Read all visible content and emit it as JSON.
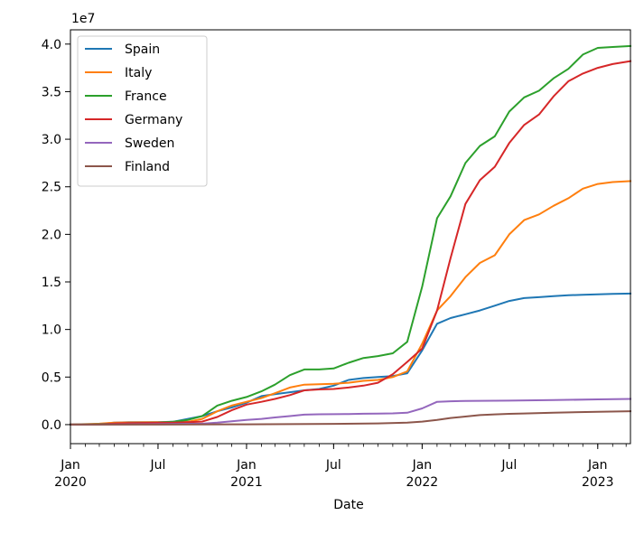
{
  "chart_data": {
    "type": "line",
    "title": "",
    "xlabel": "Date",
    "ylabel": "",
    "y_offset_label": "1e7",
    "xlim": [
      "2020-01-01",
      "2023-03-10"
    ],
    "ylim": [
      -2000000,
      41500000
    ],
    "legend_position": "upper-left",
    "grid": false,
    "x_ticks": [
      {
        "date": "2020-01-01",
        "line1": "Jan",
        "line2": "2020"
      },
      {
        "date": "2020-07-01",
        "line1": "Jul",
        "line2": ""
      },
      {
        "date": "2021-01-01",
        "line1": "Jan",
        "line2": "2021"
      },
      {
        "date": "2021-07-01",
        "line1": "Jul",
        "line2": ""
      },
      {
        "date": "2022-01-01",
        "line1": "Jan",
        "line2": "2022"
      },
      {
        "date": "2022-07-01",
        "line1": "Jul",
        "line2": ""
      },
      {
        "date": "2023-01-01",
        "line1": "Jan",
        "line2": "2023"
      }
    ],
    "y_ticks": [
      {
        "value": 0,
        "label": "0.0"
      },
      {
        "value": 5000000,
        "label": "0.5"
      },
      {
        "value": 10000000,
        "label": "1.0"
      },
      {
        "value": 15000000,
        "label": "1.5"
      },
      {
        "value": 20000000,
        "label": "2.0"
      },
      {
        "value": 25000000,
        "label": "2.5"
      },
      {
        "value": 30000000,
        "label": "3.0"
      },
      {
        "value": 35000000,
        "label": "3.5"
      },
      {
        "value": 40000000,
        "label": "4.0"
      }
    ],
    "series": [
      {
        "name": "Spain",
        "color": "#1f77b4",
        "points": [
          [
            "2020-01-01",
            0
          ],
          [
            "2020-03-01",
            50000
          ],
          [
            "2020-04-01",
            200000
          ],
          [
            "2020-05-01",
            250000
          ],
          [
            "2020-07-01",
            260000
          ],
          [
            "2020-08-01",
            300000
          ],
          [
            "2020-09-01",
            600000
          ],
          [
            "2020-10-01",
            900000
          ],
          [
            "2020-11-01",
            1400000
          ],
          [
            "2020-12-01",
            1800000
          ],
          [
            "2021-01-01",
            2300000
          ],
          [
            "2021-02-01",
            3000000
          ],
          [
            "2021-03-01",
            3200000
          ],
          [
            "2021-04-01",
            3400000
          ],
          [
            "2021-05-01",
            3600000
          ],
          [
            "2021-06-01",
            3750000
          ],
          [
            "2021-07-01",
            4100000
          ],
          [
            "2021-08-01",
            4700000
          ],
          [
            "2021-09-01",
            4900000
          ],
          [
            "2021-10-01",
            5000000
          ],
          [
            "2021-11-01",
            5100000
          ],
          [
            "2021-12-01",
            5400000
          ],
          [
            "2022-01-01",
            7800000
          ],
          [
            "2022-02-01",
            10600000
          ],
          [
            "2022-03-01",
            11200000
          ],
          [
            "2022-04-01",
            11600000
          ],
          [
            "2022-05-01",
            12000000
          ],
          [
            "2022-06-01",
            12500000
          ],
          [
            "2022-07-01",
            13000000
          ],
          [
            "2022-08-01",
            13300000
          ],
          [
            "2022-09-01",
            13400000
          ],
          [
            "2022-10-01",
            13500000
          ],
          [
            "2022-11-01",
            13600000
          ],
          [
            "2022-12-01",
            13650000
          ],
          [
            "2023-01-01",
            13700000
          ],
          [
            "2023-02-01",
            13740000
          ],
          [
            "2023-03-10",
            13780000
          ]
        ]
      },
      {
        "name": "Italy",
        "color": "#ff7f0e",
        "points": [
          [
            "2020-01-01",
            0
          ],
          [
            "2020-03-01",
            100000
          ],
          [
            "2020-04-01",
            200000
          ],
          [
            "2020-05-01",
            230000
          ],
          [
            "2020-07-01",
            250000
          ],
          [
            "2020-08-01",
            260000
          ],
          [
            "2020-09-01",
            300000
          ],
          [
            "2020-10-01",
            600000
          ],
          [
            "2020-11-01",
            1400000
          ],
          [
            "2020-12-01",
            2000000
          ],
          [
            "2021-01-01",
            2400000
          ],
          [
            "2021-02-01",
            2800000
          ],
          [
            "2021-03-01",
            3300000
          ],
          [
            "2021-04-01",
            3900000
          ],
          [
            "2021-05-01",
            4200000
          ],
          [
            "2021-06-01",
            4250000
          ],
          [
            "2021-07-01",
            4300000
          ],
          [
            "2021-08-01",
            4400000
          ],
          [
            "2021-09-01",
            4600000
          ],
          [
            "2021-10-01",
            4700000
          ],
          [
            "2021-11-01",
            5000000
          ],
          [
            "2021-12-01",
            5600000
          ],
          [
            "2022-01-01",
            8500000
          ],
          [
            "2022-02-01",
            12000000
          ],
          [
            "2022-03-01",
            13500000
          ],
          [
            "2022-04-01",
            15500000
          ],
          [
            "2022-05-01",
            17000000
          ],
          [
            "2022-06-01",
            17800000
          ],
          [
            "2022-07-01",
            20000000
          ],
          [
            "2022-08-01",
            21500000
          ],
          [
            "2022-09-01",
            22100000
          ],
          [
            "2022-10-01",
            23000000
          ],
          [
            "2022-11-01",
            23800000
          ],
          [
            "2022-12-01",
            24800000
          ],
          [
            "2023-01-01",
            25300000
          ],
          [
            "2023-02-01",
            25500000
          ],
          [
            "2023-03-10",
            25600000
          ]
        ]
      },
      {
        "name": "France",
        "color": "#2ca02c",
        "points": [
          [
            "2020-01-01",
            0
          ],
          [
            "2020-03-01",
            50000
          ],
          [
            "2020-04-01",
            100000
          ],
          [
            "2020-05-01",
            150000
          ],
          [
            "2020-07-01",
            200000
          ],
          [
            "2020-08-01",
            300000
          ],
          [
            "2020-09-01",
            500000
          ],
          [
            "2020-10-01",
            900000
          ],
          [
            "2020-11-01",
            2000000
          ],
          [
            "2020-12-01",
            2500000
          ],
          [
            "2021-01-01",
            2900000
          ],
          [
            "2021-02-01",
            3500000
          ],
          [
            "2021-03-01",
            4200000
          ],
          [
            "2021-04-01",
            5200000
          ],
          [
            "2021-05-01",
            5800000
          ],
          [
            "2021-06-01",
            5800000
          ],
          [
            "2021-07-01",
            5900000
          ],
          [
            "2021-08-01",
            6500000
          ],
          [
            "2021-09-01",
            7000000
          ],
          [
            "2021-10-01",
            7200000
          ],
          [
            "2021-11-01",
            7500000
          ],
          [
            "2021-12-01",
            8700000
          ],
          [
            "2022-01-01",
            14500000
          ],
          [
            "2022-02-01",
            21700000
          ],
          [
            "2022-03-01",
            24000000
          ],
          [
            "2022-04-01",
            27500000
          ],
          [
            "2022-05-01",
            29300000
          ],
          [
            "2022-06-01",
            30300000
          ],
          [
            "2022-07-01",
            32900000
          ],
          [
            "2022-08-01",
            34400000
          ],
          [
            "2022-09-01",
            35100000
          ],
          [
            "2022-10-01",
            36400000
          ],
          [
            "2022-11-01",
            37400000
          ],
          [
            "2022-12-01",
            38900000
          ],
          [
            "2023-01-01",
            39600000
          ],
          [
            "2023-02-01",
            39700000
          ],
          [
            "2023-03-10",
            39800000
          ]
        ]
      },
      {
        "name": "Germany",
        "color": "#d62728",
        "points": [
          [
            "2020-01-01",
            0
          ],
          [
            "2020-03-01",
            20000
          ],
          [
            "2020-04-01",
            120000
          ],
          [
            "2020-05-01",
            170000
          ],
          [
            "2020-07-01",
            190000
          ],
          [
            "2020-08-01",
            210000
          ],
          [
            "2020-09-01",
            250000
          ],
          [
            "2020-10-01",
            320000
          ],
          [
            "2020-11-01",
            800000
          ],
          [
            "2020-12-01",
            1500000
          ],
          [
            "2021-01-01",
            2100000
          ],
          [
            "2021-02-01",
            2400000
          ],
          [
            "2021-03-01",
            2700000
          ],
          [
            "2021-04-01",
            3100000
          ],
          [
            "2021-05-01",
            3600000
          ],
          [
            "2021-06-01",
            3700000
          ],
          [
            "2021-07-01",
            3750000
          ],
          [
            "2021-08-01",
            3900000
          ],
          [
            "2021-09-01",
            4100000
          ],
          [
            "2021-10-01",
            4400000
          ],
          [
            "2021-11-01",
            5300000
          ],
          [
            "2021-12-01",
            6600000
          ],
          [
            "2022-01-01",
            8000000
          ],
          [
            "2022-02-01",
            12000000
          ],
          [
            "2022-03-01",
            17500000
          ],
          [
            "2022-04-01",
            23200000
          ],
          [
            "2022-05-01",
            25700000
          ],
          [
            "2022-06-01",
            27100000
          ],
          [
            "2022-07-01",
            29600000
          ],
          [
            "2022-08-01",
            31500000
          ],
          [
            "2022-09-01",
            32600000
          ],
          [
            "2022-10-01",
            34500000
          ],
          [
            "2022-11-01",
            36100000
          ],
          [
            "2022-12-01",
            36900000
          ],
          [
            "2023-01-01",
            37500000
          ],
          [
            "2023-02-01",
            37900000
          ],
          [
            "2023-03-10",
            38200000
          ]
        ]
      },
      {
        "name": "Sweden",
        "color": "#9467bd",
        "points": [
          [
            "2020-01-01",
            0
          ],
          [
            "2020-04-01",
            10000
          ],
          [
            "2020-07-01",
            50000
          ],
          [
            "2020-10-01",
            100000
          ],
          [
            "2020-11-01",
            200000
          ],
          [
            "2020-12-01",
            350000
          ],
          [
            "2021-01-01",
            500000
          ],
          [
            "2021-02-01",
            600000
          ],
          [
            "2021-03-01",
            750000
          ],
          [
            "2021-04-01",
            900000
          ],
          [
            "2021-05-01",
            1050000
          ],
          [
            "2021-06-01",
            1090000
          ],
          [
            "2021-07-01",
            1100000
          ],
          [
            "2021-08-01",
            1120000
          ],
          [
            "2021-09-01",
            1140000
          ],
          [
            "2021-10-01",
            1160000
          ],
          [
            "2021-11-01",
            1180000
          ],
          [
            "2021-12-01",
            1250000
          ],
          [
            "2022-01-01",
            1700000
          ],
          [
            "2022-02-01",
            2400000
          ],
          [
            "2022-03-01",
            2450000
          ],
          [
            "2022-04-01",
            2480000
          ],
          [
            "2022-05-01",
            2500000
          ],
          [
            "2022-07-01",
            2520000
          ],
          [
            "2022-10-01",
            2580000
          ],
          [
            "2023-01-01",
            2650000
          ],
          [
            "2023-03-10",
            2700000
          ]
        ]
      },
      {
        "name": "Finland",
        "color": "#8c564b",
        "points": [
          [
            "2020-01-01",
            0
          ],
          [
            "2020-07-01",
            5000
          ],
          [
            "2021-01-01",
            30000
          ],
          [
            "2021-07-01",
            80000
          ],
          [
            "2021-10-01",
            130000
          ],
          [
            "2021-12-01",
            200000
          ],
          [
            "2022-01-01",
            320000
          ],
          [
            "2022-02-01",
            500000
          ],
          [
            "2022-03-01",
            700000
          ],
          [
            "2022-04-01",
            850000
          ],
          [
            "2022-05-01",
            1000000
          ],
          [
            "2022-06-01",
            1080000
          ],
          [
            "2022-07-01",
            1130000
          ],
          [
            "2022-08-01",
            1170000
          ],
          [
            "2022-10-01",
            1250000
          ],
          [
            "2023-01-01",
            1350000
          ],
          [
            "2023-03-10",
            1400000
          ]
        ]
      }
    ]
  }
}
